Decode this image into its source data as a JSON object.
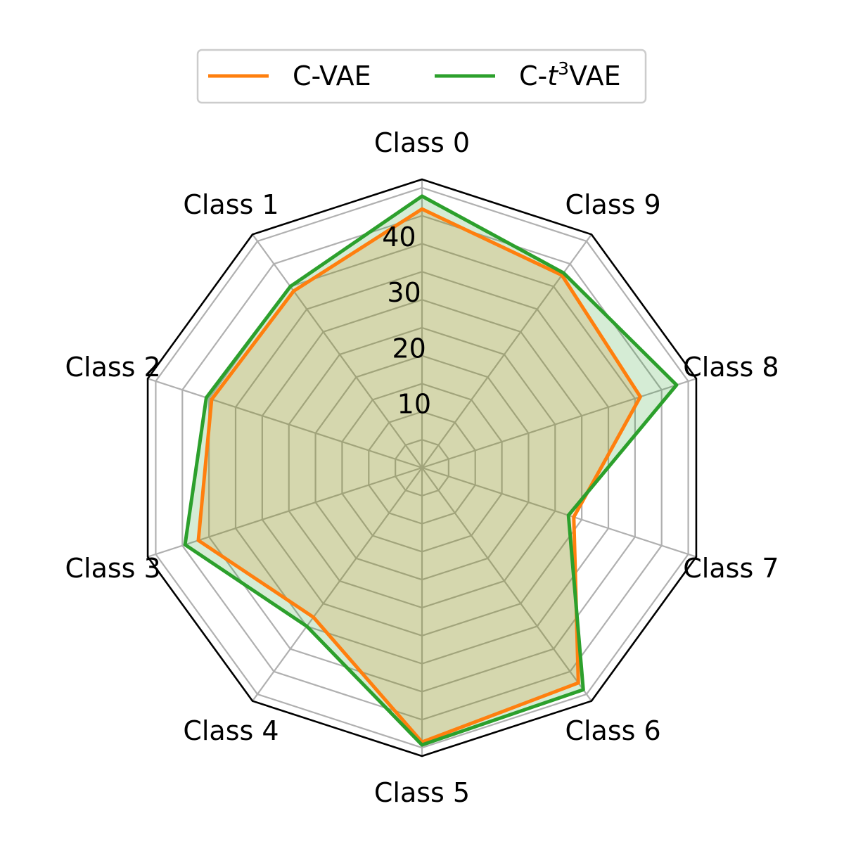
{
  "chart_data": {
    "type": "radar",
    "categories": [
      "Class 0",
      "Class 1",
      "Class 2",
      "Class 3",
      "Class 4",
      "Class 5",
      "Class 6",
      "Class 7",
      "Class 8",
      "Class 9"
    ],
    "rticks": [
      10,
      20,
      30,
      40
    ],
    "rlim": [
      0,
      51.5
    ],
    "grid": true,
    "legend_placement": "top-center",
    "series": [
      {
        "name": "C-VAE",
        "color": "#ff7f0e",
        "values": [
          46.2,
          39.0,
          39.5,
          42.0,
          33.0,
          49.0,
          47.5,
          28.5,
          41.0,
          42.5
        ]
      },
      {
        "name": "C-t³VAE",
        "name_parts": [
          "C-",
          "t",
          "3",
          "VAE"
        ],
        "color": "#2ca02c",
        "values": [
          48.5,
          40.0,
          40.5,
          44.5,
          35.0,
          49.5,
          49.0,
          27.5,
          47.8,
          43.0
        ]
      }
    ]
  }
}
